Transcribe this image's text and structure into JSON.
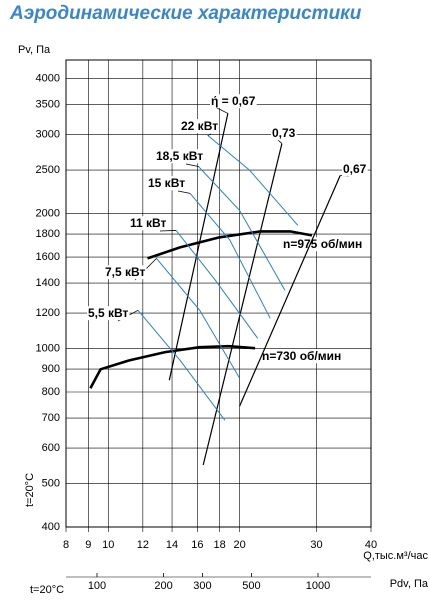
{
  "chart_data": {
    "type": "line",
    "title": "Аэродинамические характеристики",
    "y_label": "Pv, Па",
    "x_label": "Q,тыс.м³/час",
    "x2_label": "Pdv, Па",
    "note": "t=20°C",
    "log_x": true,
    "log_y": true,
    "grid": true,
    "xlim": [
      8,
      40
    ],
    "xticks": [
      8,
      9,
      10,
      12,
      14,
      16,
      18,
      20,
      30,
      40
    ],
    "ylim": [
      400,
      4400
    ],
    "yticks": [
      400,
      500,
      600,
      700,
      800,
      900,
      1000,
      1200,
      1400,
      1600,
      1800,
      2000,
      2500,
      3000,
      3500,
      4000
    ],
    "x2lim": [
      72.4,
      1737
    ],
    "x2ticks": [
      100,
      200,
      300,
      500,
      1000
    ],
    "series": [
      {
        "name": "n=975 об/мин",
        "color": "#000000",
        "x": [
          12.3,
          14.6,
          18.0,
          22.3,
          26.1,
          29.3
        ],
        "y": [
          1589,
          1681,
          1770,
          1825,
          1825,
          1788
        ]
      },
      {
        "name": "n=730 об/мин",
        "color": "#000000",
        "x": [
          9.1,
          9.6,
          11.2,
          13.5,
          16.2,
          18.9,
          21.7
        ],
        "y": [
          816,
          899,
          942,
          982,
          1007,
          1012,
          1002
        ]
      },
      {
        "name": "ή = 0,67",
        "color": "#000000",
        "x": [
          13.8,
          18.8
        ],
        "y": [
          850,
          3344
        ]
      },
      {
        "name": "0,73",
        "color": "#000000",
        "x": [
          16.5,
          25.0
        ],
        "y": [
          550,
          2865
        ]
      },
      {
        "name": "0,67",
        "color": "#000000",
        "x": [
          20.0,
          34.0
        ],
        "y": [
          744,
          2432
        ]
      },
      {
        "name": "22 кВт",
        "color": "#2f7fc8",
        "x": [
          16.9,
          21.1,
          27.2
        ],
        "y": [
          2987,
          2496,
          1882
        ]
      },
      {
        "name": "18,5 кВт",
        "color": "#2f7fc8",
        "x": [
          16.1,
          20.0,
          25.4
        ],
        "y": [
          2547,
          2033,
          1349
        ]
      },
      {
        "name": "15 кВт",
        "color": "#2f7fc8",
        "x": [
          15.4,
          19.0,
          23.5
        ],
        "y": [
          2218,
          1744,
          1168
        ]
      },
      {
        "name": "11 кВт",
        "color": "#2f7fc8",
        "x": [
          14.3,
          17.6,
          22.0
        ],
        "y": [
          1834,
          1420,
          1054
        ]
      },
      {
        "name": "7,5 кВт",
        "color": "#2f7fc8",
        "x": [
          12.9,
          16.2,
          20.0
        ],
        "y": [
          1589,
          1217,
          859
        ]
      },
      {
        "name": "5,5 кВт",
        "color": "#2f7fc8",
        "x": [
          11.7,
          14.6,
          18.5
        ],
        "y": [
          1217,
          942,
          692
        ]
      }
    ]
  }
}
